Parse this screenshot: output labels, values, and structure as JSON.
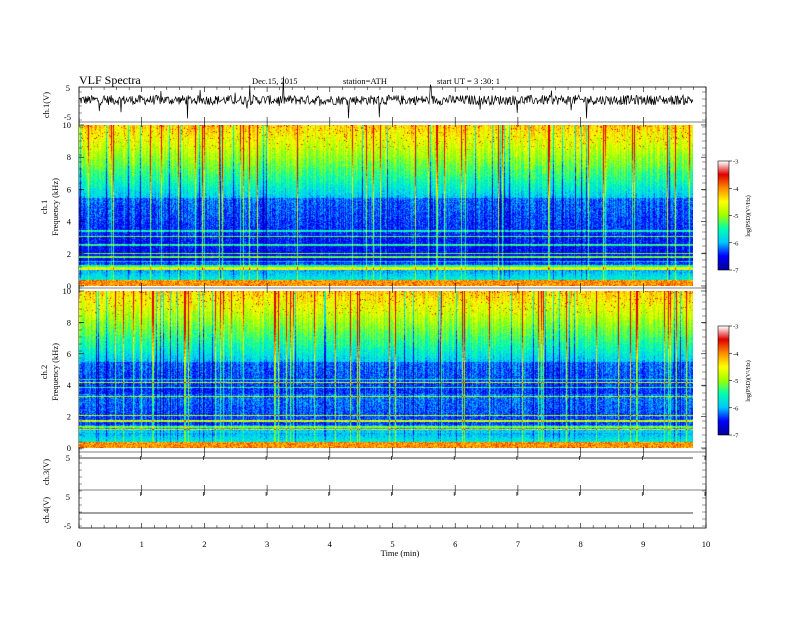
{
  "header": {
    "title": "VLF  Spectra",
    "date": "Dec.15, 2015",
    "station": "station=ATH",
    "start": "start  UT  =   3  :30: 1"
  },
  "chart_data": [
    {
      "type": "line",
      "panel": "ch1-waveform",
      "ylabel": "ch.1(V)",
      "yticks": [
        "5",
        "-5"
      ],
      "ylim": [
        -5,
        5
      ],
      "x_range_min": [
        0,
        9.8
      ],
      "description_level": "noisy signal near -0.5 V"
    },
    {
      "type": "heatmap",
      "panel": "ch1-spectrogram",
      "ylabel_top": "ch.1",
      "ylabel": "Frequency  (kHz)",
      "yticks": [
        "0",
        "2",
        "4",
        "6",
        "8",
        "10"
      ],
      "ylim": [
        0,
        10
      ],
      "xlim": [
        0,
        9.8
      ],
      "colorbar": {
        "label": "log(PSD)(V²/Hz)",
        "ticks": [
          "-3",
          "-4",
          "-5",
          "-6",
          "-7"
        ],
        "range": [
          -7,
          -3
        ]
      }
    },
    {
      "type": "heatmap",
      "panel": "ch2-spectrogram",
      "ylabel_top": "ch.2",
      "ylabel": "Frequency  (kHz)",
      "yticks": [
        "0",
        "2",
        "4",
        "6",
        "8",
        "10"
      ],
      "ylim": [
        0,
        10
      ],
      "xlim": [
        0,
        9.8
      ],
      "colorbar": {
        "label": "log(PSD)(V²/Hz)",
        "ticks": [
          "-3",
          "-4",
          "-5",
          "-6",
          "-7"
        ],
        "range": [
          -7,
          -3
        ]
      }
    },
    {
      "type": "line",
      "panel": "ch3-waveform",
      "ylabel": "ch.3(V)",
      "yticks": [
        "5"
      ],
      "ylim": [
        -5,
        5
      ]
    },
    {
      "type": "line",
      "panel": "ch4-waveform",
      "ylabel": "ch.4(V)",
      "yticks": [
        "5",
        "-5"
      ],
      "ylim": [
        -5,
        5
      ]
    }
  ],
  "xaxis": {
    "label": "Time  (min)",
    "ticks": [
      "0",
      "1",
      "2",
      "3",
      "4",
      "5",
      "6",
      "7",
      "8",
      "9",
      "10"
    ],
    "range": [
      0,
      10
    ]
  },
  "colors": {
    "background": "#ffffff",
    "axis": "#000000",
    "colormap": [
      "#00009a",
      "#0000ff",
      "#00c8ff",
      "#00ffb0",
      "#a0ff00",
      "#ffff00",
      "#ff8c00",
      "#e00000",
      "#ffffff"
    ]
  }
}
